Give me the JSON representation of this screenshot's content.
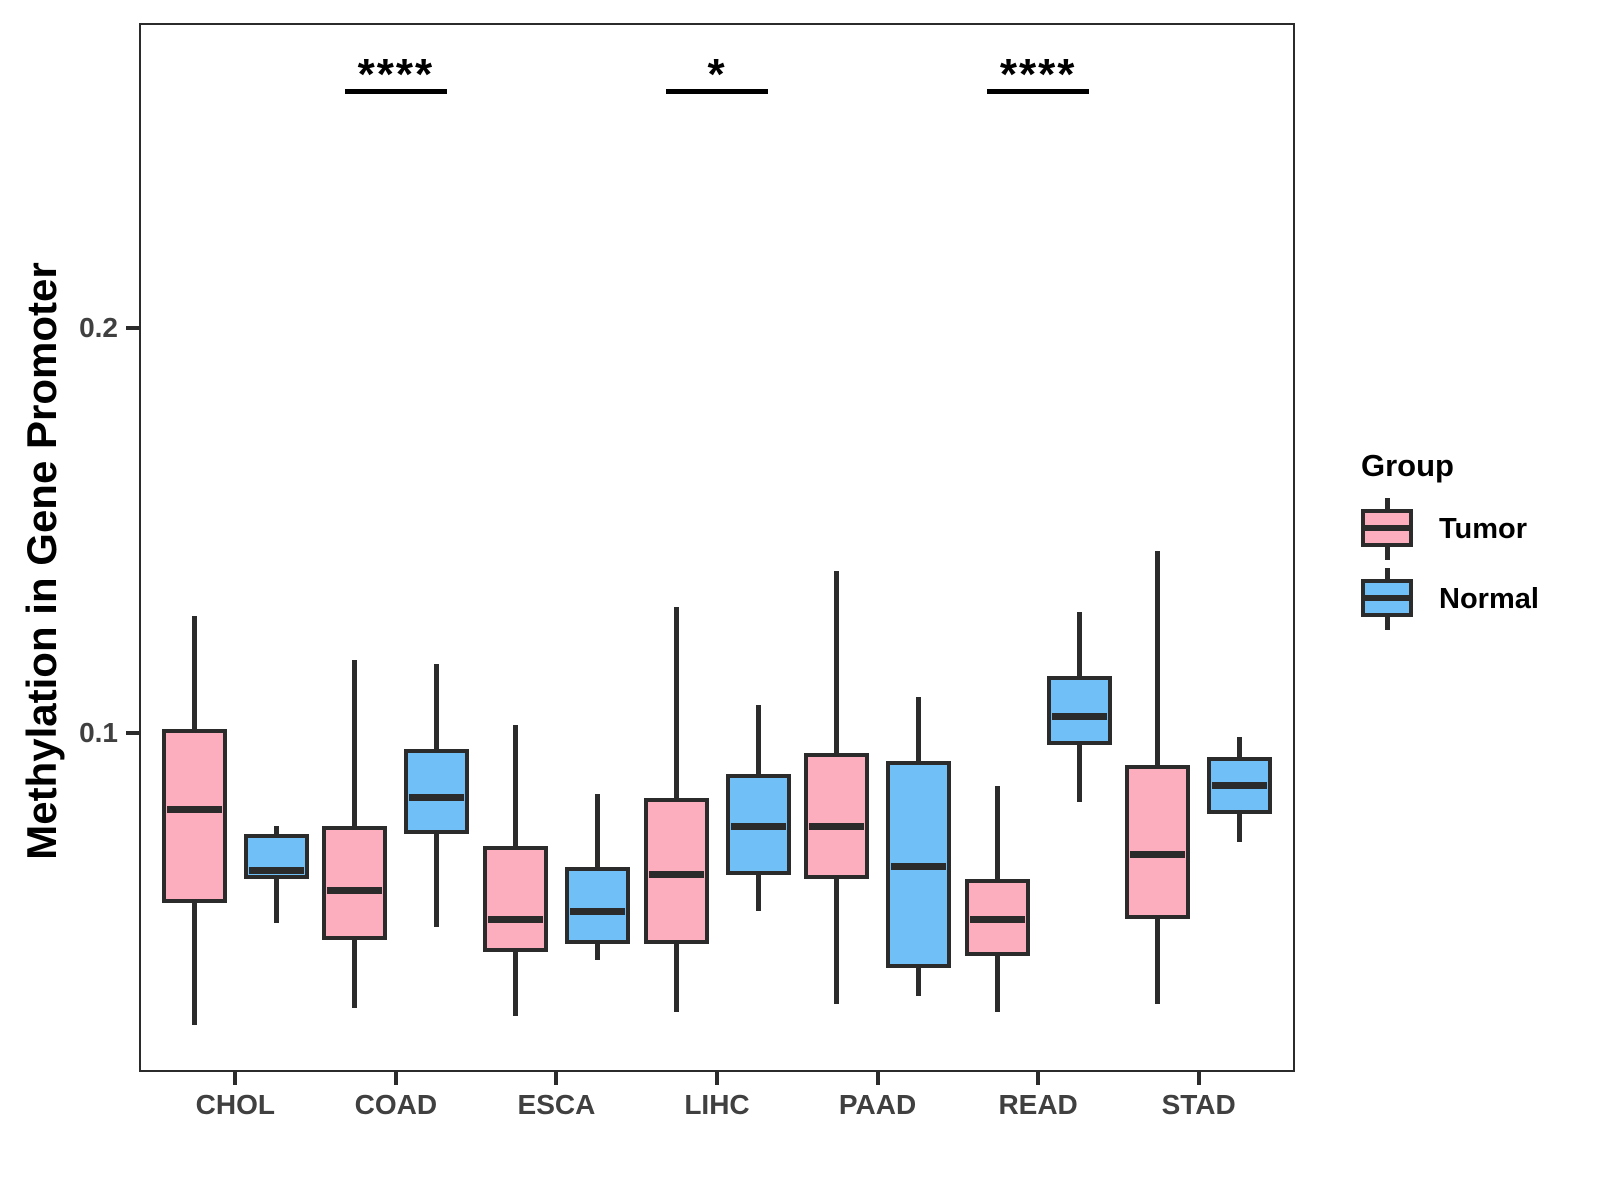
{
  "chart_data": {
    "type": "boxplot",
    "title": "",
    "ylabel": "Methylation in Gene Promoter",
    "xlabel": "",
    "categories": [
      "CHOL",
      "COAD",
      "ESCA",
      "LIHC",
      "PAAD",
      "READ",
      "STAD"
    ],
    "yticks": [
      {
        "label": "0.2",
        "value": 0.2
      },
      {
        "label": "0.1",
        "value": 0.1
      }
    ],
    "ylim": [
      0.016,
      0.275
    ],
    "grid": false,
    "legend": {
      "title": "Group",
      "position": "right",
      "entries": [
        {
          "label": "Tumor",
          "color": "#FCAEBE"
        },
        {
          "label": "Normal",
          "color": "#71BFF7"
        }
      ]
    },
    "groups": [
      {
        "name": "Tumor",
        "color": "#FCAEBE",
        "boxes": [
          {
            "category": "CHOL",
            "min": 0.028,
            "q1": 0.058,
            "median": 0.081,
            "q3": 0.101,
            "max": 0.129
          },
          {
            "category": "COAD",
            "min": 0.032,
            "q1": 0.049,
            "median": 0.061,
            "q3": 0.077,
            "max": 0.118
          },
          {
            "category": "ESCA",
            "min": 0.03,
            "q1": 0.046,
            "median": 0.054,
            "q3": 0.072,
            "max": 0.102
          },
          {
            "category": "LIHC",
            "min": 0.031,
            "q1": 0.048,
            "median": 0.065,
            "q3": 0.084,
            "max": 0.131
          },
          {
            "category": "PAAD",
            "min": 0.033,
            "q1": 0.064,
            "median": 0.077,
            "q3": 0.095,
            "max": 0.14
          },
          {
            "category": "READ",
            "min": 0.031,
            "q1": 0.045,
            "median": 0.054,
            "q3": 0.064,
            "max": 0.087
          },
          {
            "category": "STAD",
            "min": 0.033,
            "q1": 0.054,
            "median": 0.07,
            "q3": 0.092,
            "max": 0.145
          }
        ]
      },
      {
        "name": "Normal",
        "color": "#71BFF7",
        "boxes": [
          {
            "category": "CHOL",
            "min": 0.053,
            "q1": 0.064,
            "median": 0.066,
            "q3": 0.075,
            "max": 0.077
          },
          {
            "category": "COAD",
            "min": 0.052,
            "q1": 0.075,
            "median": 0.084,
            "q3": 0.096,
            "max": 0.117
          },
          {
            "category": "ESCA",
            "min": 0.044,
            "q1": 0.048,
            "median": 0.056,
            "q3": 0.067,
            "max": 0.085
          },
          {
            "category": "LIHC",
            "min": 0.056,
            "q1": 0.065,
            "median": 0.077,
            "q3": 0.09,
            "max": 0.107
          },
          {
            "category": "PAAD",
            "min": 0.035,
            "q1": 0.042,
            "median": 0.067,
            "q3": 0.093,
            "max": 0.109
          },
          {
            "category": "READ",
            "min": 0.083,
            "q1": 0.097,
            "median": 0.104,
            "q3": 0.114,
            "max": 0.13
          },
          {
            "category": "STAD",
            "min": 0.073,
            "q1": 0.08,
            "median": 0.087,
            "q3": 0.094,
            "max": 0.099
          }
        ]
      }
    ],
    "annotations": [
      {
        "category": "COAD",
        "label": "****"
      },
      {
        "category": "LIHC",
        "label": "*"
      },
      {
        "category": "READ",
        "label": "****"
      }
    ],
    "colors": {
      "box_border": "#2b2b2b",
      "axis_text": "#404040",
      "annotation": "#000000",
      "background": "#ffffff"
    }
  }
}
